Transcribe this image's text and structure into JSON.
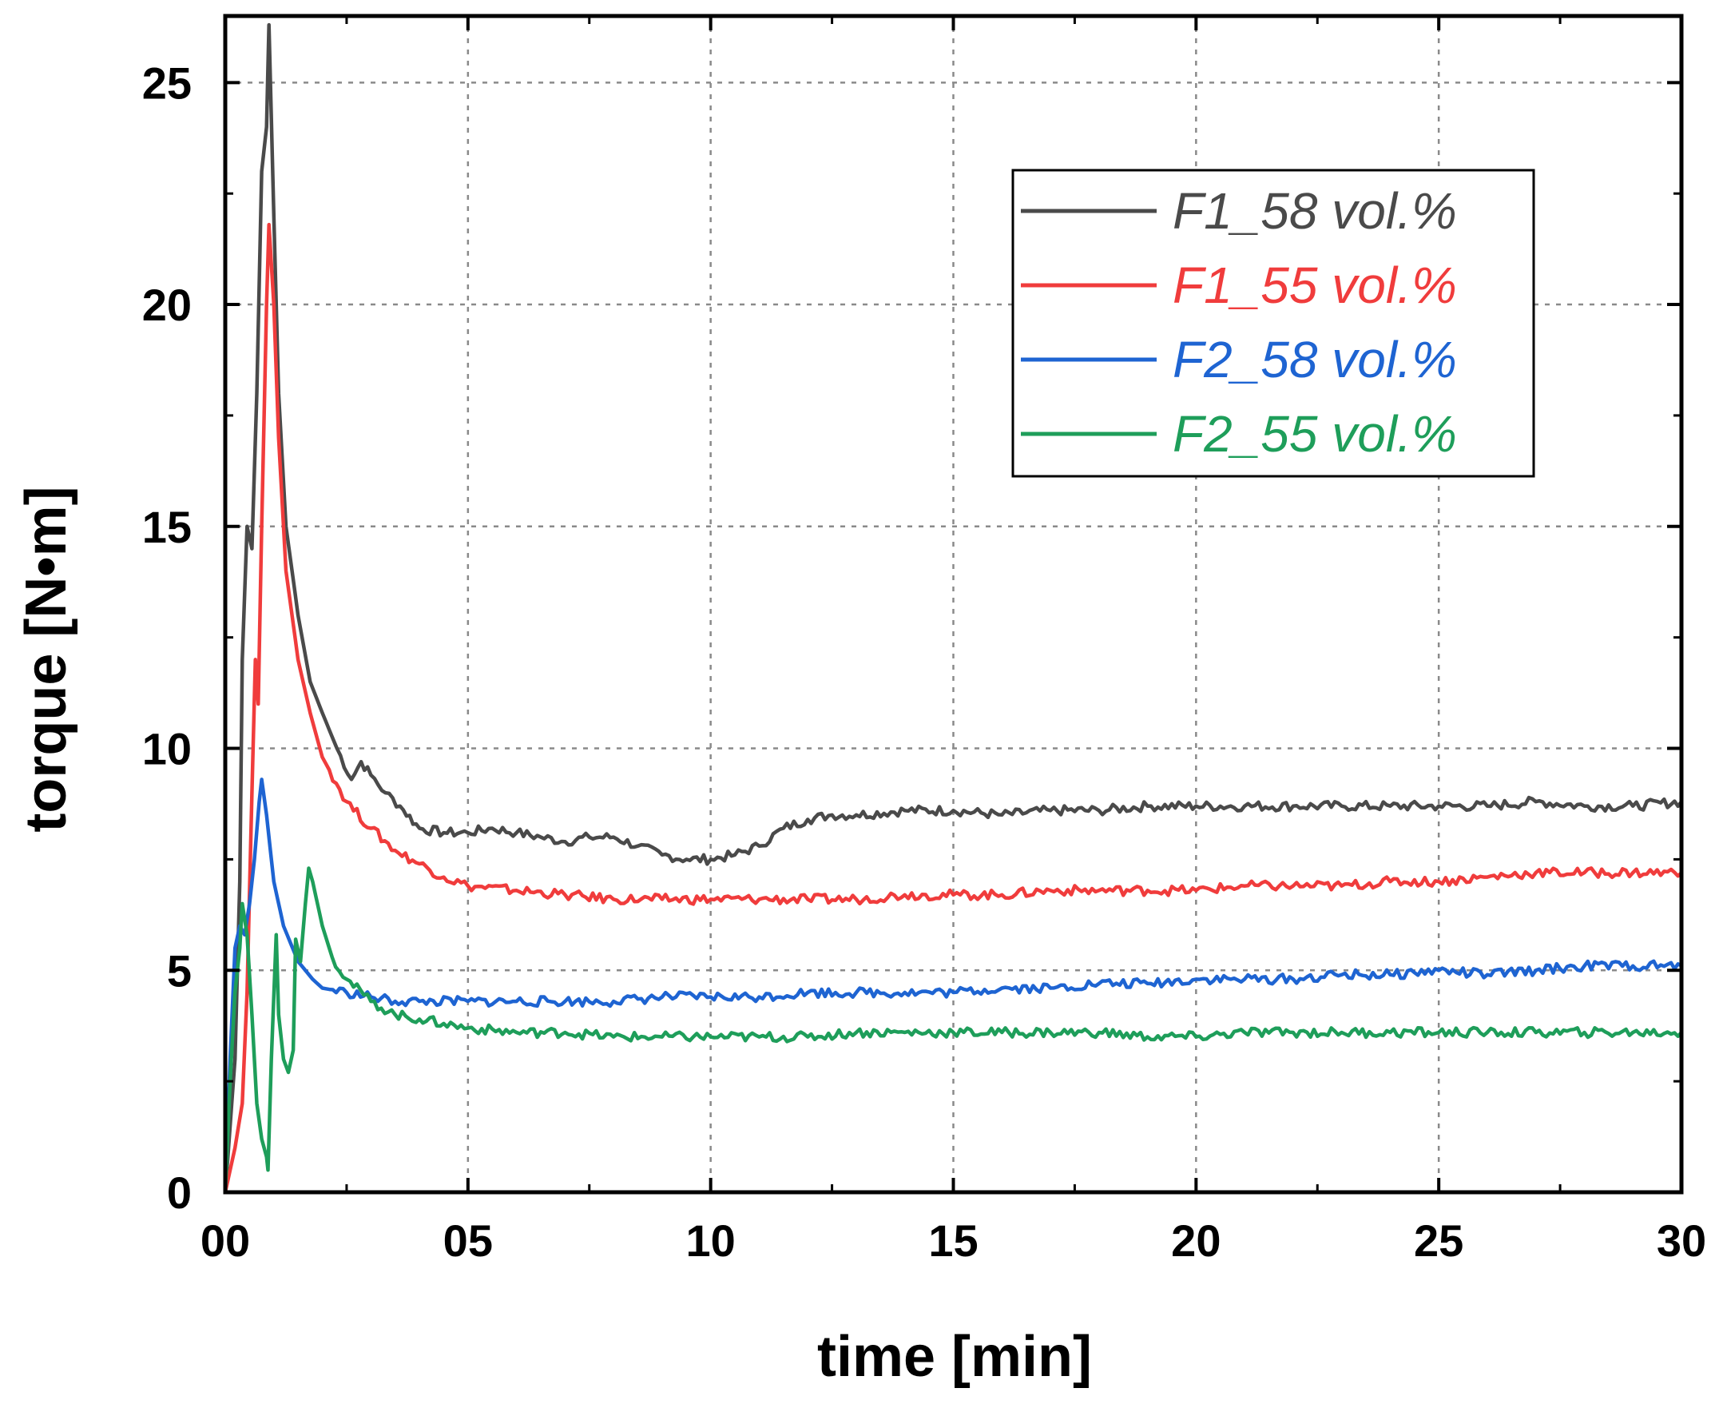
{
  "chart_data": {
    "type": "line",
    "title": "",
    "xlabel": "time  [min]",
    "ylabel": "torque  [N•m]",
    "xlim": [
      0,
      30
    ],
    "ylim": [
      0,
      26.5
    ],
    "xticks": [
      0,
      5,
      10,
      15,
      20,
      25,
      30
    ],
    "xtick_labels": [
      "00",
      "05",
      "10",
      "15",
      "20",
      "25",
      "30"
    ],
    "yticks": [
      0,
      5,
      10,
      15,
      20,
      25
    ],
    "ytick_labels": [
      "0",
      "5",
      "10",
      "15",
      "20",
      "25"
    ],
    "grid": true,
    "legend_position": "top-right",
    "series": [
      {
        "name": "F1_58 vol.%",
        "color": "#4a4a4a",
        "points": [
          [
            0,
            0
          ],
          [
            0.2,
            3
          ],
          [
            0.3,
            7
          ],
          [
            0.35,
            12
          ],
          [
            0.45,
            15
          ],
          [
            0.55,
            14.5
          ],
          [
            0.65,
            18
          ],
          [
            0.75,
            23
          ],
          [
            0.85,
            24
          ],
          [
            0.9,
            26.3
          ],
          [
            1.0,
            22
          ],
          [
            1.1,
            18
          ],
          [
            1.25,
            15
          ],
          [
            1.5,
            13
          ],
          [
            1.75,
            11.5
          ],
          [
            2.0,
            10.8
          ],
          [
            2.3,
            10.0
          ],
          [
            2.6,
            9.3
          ],
          [
            2.8,
            9.7
          ],
          [
            3.0,
            9.4
          ],
          [
            3.3,
            9.0
          ],
          [
            3.6,
            8.7
          ],
          [
            4.0,
            8.2
          ],
          [
            4.5,
            8.1
          ],
          [
            5,
            8.1
          ],
          [
            5.5,
            8.2
          ],
          [
            6,
            8.1
          ],
          [
            6.5,
            8.0
          ],
          [
            7,
            7.9
          ],
          [
            7.5,
            8.0
          ],
          [
            8,
            8.0
          ],
          [
            8.5,
            7.8
          ],
          [
            9,
            7.6
          ],
          [
            9.5,
            7.5
          ],
          [
            10,
            7.5
          ],
          [
            10.5,
            7.6
          ],
          [
            11,
            7.8
          ],
          [
            11.5,
            8.2
          ],
          [
            12,
            8.4
          ],
          [
            12.5,
            8.5
          ],
          [
            13,
            8.5
          ],
          [
            14,
            8.6
          ],
          [
            15,
            8.6
          ],
          [
            16,
            8.5
          ],
          [
            17,
            8.6
          ],
          [
            18,
            8.6
          ],
          [
            19,
            8.7
          ],
          [
            20,
            8.7
          ],
          [
            21,
            8.7
          ],
          [
            22,
            8.7
          ],
          [
            23,
            8.7
          ],
          [
            24,
            8.7
          ],
          [
            25,
            8.7
          ],
          [
            26,
            8.7
          ],
          [
            27,
            8.8
          ],
          [
            28,
            8.7
          ],
          [
            29,
            8.7
          ],
          [
            30,
            8.8
          ]
        ]
      },
      {
        "name": "F1_55 vol.%",
        "color": "#f03c3c",
        "points": [
          [
            0,
            0
          ],
          [
            0.1,
            0.5
          ],
          [
            0.2,
            1.0
          ],
          [
            0.35,
            2.0
          ],
          [
            0.45,
            4.5
          ],
          [
            0.55,
            9.0
          ],
          [
            0.62,
            12
          ],
          [
            0.68,
            11
          ],
          [
            0.75,
            15
          ],
          [
            0.85,
            20
          ],
          [
            0.9,
            21.8
          ],
          [
            1.0,
            20
          ],
          [
            1.1,
            17
          ],
          [
            1.25,
            14
          ],
          [
            1.5,
            12
          ],
          [
            1.75,
            10.8
          ],
          [
            2.0,
            9.8
          ],
          [
            2.5,
            8.8
          ],
          [
            3,
            8.2
          ],
          [
            3.5,
            7.7
          ],
          [
            4,
            7.4
          ],
          [
            4.5,
            7.1
          ],
          [
            5,
            6.9
          ],
          [
            6,
            6.8
          ],
          [
            7,
            6.7
          ],
          [
            8,
            6.6
          ],
          [
            9,
            6.6
          ],
          [
            10,
            6.6
          ],
          [
            11,
            6.6
          ],
          [
            12,
            6.6
          ],
          [
            13,
            6.6
          ],
          [
            14,
            6.7
          ],
          [
            15,
            6.7
          ],
          [
            16,
            6.7
          ],
          [
            17,
            6.8
          ],
          [
            18,
            6.8
          ],
          [
            19,
            6.8
          ],
          [
            20,
            6.8
          ],
          [
            21,
            6.9
          ],
          [
            22,
            6.9
          ],
          [
            23,
            6.9
          ],
          [
            24,
            7.0
          ],
          [
            25,
            7.0
          ],
          [
            26,
            7.1
          ],
          [
            27,
            7.2
          ],
          [
            28,
            7.2
          ],
          [
            29,
            7.2
          ],
          [
            30,
            7.2
          ]
        ]
      },
      {
        "name": "F2_58 vol.%",
        "color": "#1e64d2",
        "points": [
          [
            0,
            0
          ],
          [
            0.1,
            3
          ],
          [
            0.2,
            5.5
          ],
          [
            0.3,
            6
          ],
          [
            0.4,
            5.8
          ],
          [
            0.5,
            6.5
          ],
          [
            0.6,
            7.5
          ],
          [
            0.7,
            8.8
          ],
          [
            0.75,
            9.3
          ],
          [
            0.85,
            8.5
          ],
          [
            1.0,
            7.0
          ],
          [
            1.2,
            6.0
          ],
          [
            1.5,
            5.2
          ],
          [
            1.8,
            4.8
          ],
          [
            2.0,
            4.6
          ],
          [
            2.5,
            4.5
          ],
          [
            3,
            4.4
          ],
          [
            3.5,
            4.3
          ],
          [
            4,
            4.3
          ],
          [
            5,
            4.3
          ],
          [
            6,
            4.3
          ],
          [
            7,
            4.3
          ],
          [
            8,
            4.3
          ],
          [
            9,
            4.4
          ],
          [
            10,
            4.4
          ],
          [
            11,
            4.4
          ],
          [
            12,
            4.5
          ],
          [
            13,
            4.5
          ],
          [
            14,
            4.5
          ],
          [
            15,
            4.5
          ],
          [
            16,
            4.6
          ],
          [
            17,
            4.6
          ],
          [
            18,
            4.7
          ],
          [
            19,
            4.7
          ],
          [
            20,
            4.8
          ],
          [
            21,
            4.8
          ],
          [
            22,
            4.8
          ],
          [
            23,
            4.9
          ],
          [
            24,
            4.9
          ],
          [
            25,
            5.0
          ],
          [
            26,
            4.9
          ],
          [
            27,
            5.0
          ],
          [
            28,
            5.1
          ],
          [
            29,
            5.1
          ],
          [
            30,
            5.1
          ]
        ]
      },
      {
        "name": "F2_55 vol.%",
        "color": "#1e9e5a",
        "points": [
          [
            0,
            0
          ],
          [
            0.1,
            2.5
          ],
          [
            0.2,
            4.5
          ],
          [
            0.3,
            5.5
          ],
          [
            0.35,
            6.5
          ],
          [
            0.45,
            5.8
          ],
          [
            0.55,
            4
          ],
          [
            0.65,
            2
          ],
          [
            0.75,
            1.2
          ],
          [
            0.85,
            0.8
          ],
          [
            0.88,
            0.5
          ],
          [
            0.95,
            3
          ],
          [
            1.05,
            5.8
          ],
          [
            1.1,
            4
          ],
          [
            1.2,
            3.0
          ],
          [
            1.3,
            2.7
          ],
          [
            1.4,
            3.2
          ],
          [
            1.45,
            5.7
          ],
          [
            1.55,
            5.2
          ],
          [
            1.65,
            6.5
          ],
          [
            1.72,
            7.3
          ],
          [
            1.8,
            7.0
          ],
          [
            2.0,
            6.0
          ],
          [
            2.2,
            5.3
          ],
          [
            2.5,
            4.8
          ],
          [
            3,
            4.3
          ],
          [
            3.5,
            4.0
          ],
          [
            4,
            3.9
          ],
          [
            4.5,
            3.8
          ],
          [
            5,
            3.7
          ],
          [
            6,
            3.6
          ],
          [
            7,
            3.6
          ],
          [
            8,
            3.5
          ],
          [
            9,
            3.5
          ],
          [
            10,
            3.5
          ],
          [
            11,
            3.5
          ],
          [
            12,
            3.5
          ],
          [
            13,
            3.6
          ],
          [
            14,
            3.6
          ],
          [
            15,
            3.6
          ],
          [
            16,
            3.6
          ],
          [
            17,
            3.6
          ],
          [
            18,
            3.6
          ],
          [
            19,
            3.5
          ],
          [
            20,
            3.5
          ],
          [
            21,
            3.6
          ],
          [
            22,
            3.6
          ],
          [
            23,
            3.6
          ],
          [
            24,
            3.6
          ],
          [
            25,
            3.6
          ],
          [
            26,
            3.6
          ],
          [
            27,
            3.6
          ],
          [
            28,
            3.6
          ],
          [
            29,
            3.6
          ],
          [
            30,
            3.6
          ]
        ]
      }
    ]
  }
}
